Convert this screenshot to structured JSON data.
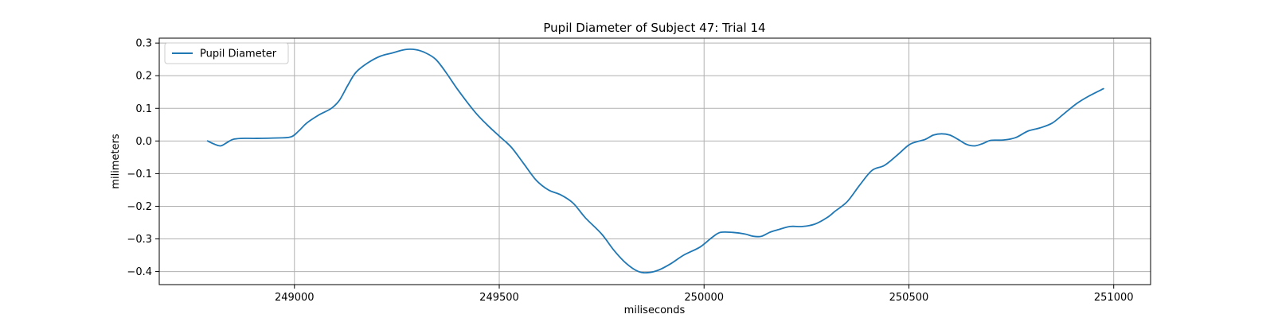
{
  "chart_data": {
    "type": "line",
    "title": "Pupil Diameter of Subject 47: Trial 14",
    "xlabel": "miliseconds",
    "ylabel": "milimeters",
    "xlim": [
      248670,
      251090
    ],
    "ylim": [
      -0.44,
      0.315
    ],
    "grid": true,
    "legend": {
      "placement": "top-left",
      "entries": [
        "Pupil Diameter"
      ]
    },
    "xticks": [
      249000,
      249500,
      250000,
      250500,
      251000
    ],
    "yticks": [
      0.3,
      0.2,
      0.1,
      0.0,
      -0.1,
      -0.2,
      -0.3,
      -0.4
    ],
    "xtick_labels": [
      "249000",
      "249500",
      "250000",
      "250500",
      "251000"
    ],
    "ytick_labels": [
      "0.3",
      "0.2",
      "0.1",
      "0.0",
      "−0.1",
      "−0.2",
      "−0.3",
      "−0.4"
    ],
    "series": [
      {
        "name": "Pupil Diameter",
        "color": "#1f77b4",
        "x": [
          248788,
          248805,
          248820,
          248835,
          248850,
          248870,
          248900,
          248950,
          248990,
          249010,
          249030,
          249060,
          249090,
          249110,
          249130,
          249150,
          249180,
          249210,
          249240,
          249270,
          249295,
          249320,
          249345,
          249370,
          249400,
          249440,
          249470,
          249500,
          249530,
          249560,
          249590,
          249620,
          249650,
          249680,
          249710,
          249750,
          249780,
          249810,
          249840,
          249865,
          249890,
          249920,
          249950,
          249990,
          250020,
          250040,
          250070,
          250100,
          250120,
          250140,
          250160,
          250180,
          250210,
          250240,
          250270,
          250300,
          250320,
          250350,
          250380,
          250410,
          250440,
          250470,
          250500,
          250520,
          250540,
          250560,
          250580,
          250600,
          250620,
          250640,
          250660,
          250680,
          250700,
          250730,
          250760,
          250790,
          250820,
          250850,
          250880,
          250910,
          250940,
          250975
        ],
        "y": [
          0.0,
          -0.01,
          -0.015,
          -0.005,
          0.005,
          0.008,
          0.008,
          0.009,
          0.012,
          0.03,
          0.055,
          0.08,
          0.1,
          0.125,
          0.17,
          0.21,
          0.24,
          0.26,
          0.27,
          0.28,
          0.28,
          0.27,
          0.25,
          0.21,
          0.155,
          0.09,
          0.05,
          0.015,
          -0.02,
          -0.07,
          -0.12,
          -0.15,
          -0.165,
          -0.19,
          -0.235,
          -0.285,
          -0.335,
          -0.375,
          -0.4,
          -0.403,
          -0.395,
          -0.375,
          -0.35,
          -0.325,
          -0.295,
          -0.28,
          -0.28,
          -0.285,
          -0.292,
          -0.292,
          -0.28,
          -0.272,
          -0.262,
          -0.262,
          -0.255,
          -0.235,
          -0.215,
          -0.185,
          -0.135,
          -0.09,
          -0.075,
          -0.045,
          -0.012,
          -0.002,
          0.005,
          0.018,
          0.022,
          0.018,
          0.005,
          -0.01,
          -0.015,
          -0.008,
          0.002,
          0.003,
          0.01,
          0.03,
          0.04,
          0.055,
          0.085,
          0.115,
          0.138,
          0.16
        ]
      }
    ]
  }
}
